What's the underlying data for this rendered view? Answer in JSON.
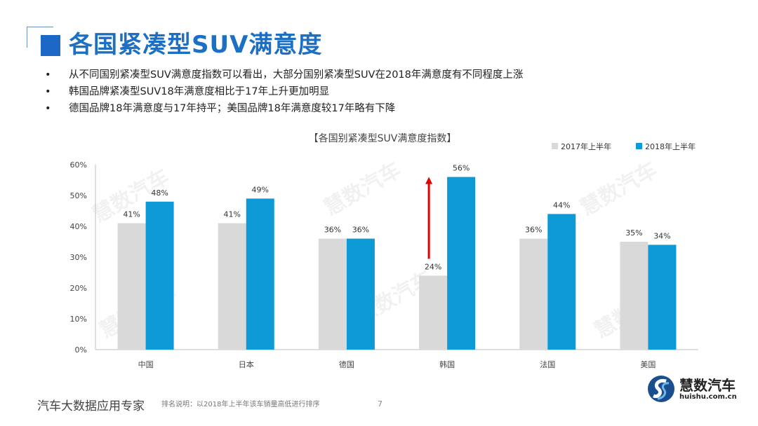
{
  "header": {
    "title": "各国紧凑型SUV满意度"
  },
  "bullets": [
    "从不同国别紧凑型SUV满意度指数可以看出，大部分国别紧凑型SUV在2018年满意度有不同程度上涨",
    "韩国品牌紧凑型SUV18年满意度相比于17年上升更加明显",
    "德国品牌18年满意度与17年持平；美国品牌18年满意度较17年略有下降"
  ],
  "watermark": "慧数汽车",
  "chart_data": {
    "type": "bar",
    "title": "【各国别紧凑型SUV满意度指数】",
    "categories": [
      "中国",
      "日本",
      "德国",
      "韩国",
      "法国",
      "美国"
    ],
    "series": [
      {
        "name": "2017年上半年",
        "values": [
          41,
          41,
          36,
          24,
          36,
          35
        ],
        "color": "#d9d9d9"
      },
      {
        "name": "2018年上半年",
        "values": [
          48,
          49,
          36,
          56,
          44,
          34
        ],
        "color": "#0e9ad7"
      }
    ],
    "data_labels": [
      [
        "41%",
        "41%",
        "36%",
        "24%",
        "36%",
        "35%"
      ],
      [
        "48%",
        "49%",
        "36%",
        "56%",
        "44%",
        "34%"
      ]
    ],
    "ylim": [
      0,
      60
    ],
    "yticks": [
      "0%",
      "10%",
      "20%",
      "30%",
      "40%",
      "50%",
      "60%"
    ],
    "grid": false,
    "legend": "top-right",
    "annotation": {
      "type": "arrow",
      "category": "韩国",
      "color": "#e00000"
    }
  },
  "footer": {
    "slogan": "汽车大数据应用专家",
    "note": "排名说明：以2018年上半年该车销量高低进行排序",
    "page": "7"
  },
  "logo": {
    "name": "慧数汽车",
    "url": "huishu.com.cn"
  }
}
